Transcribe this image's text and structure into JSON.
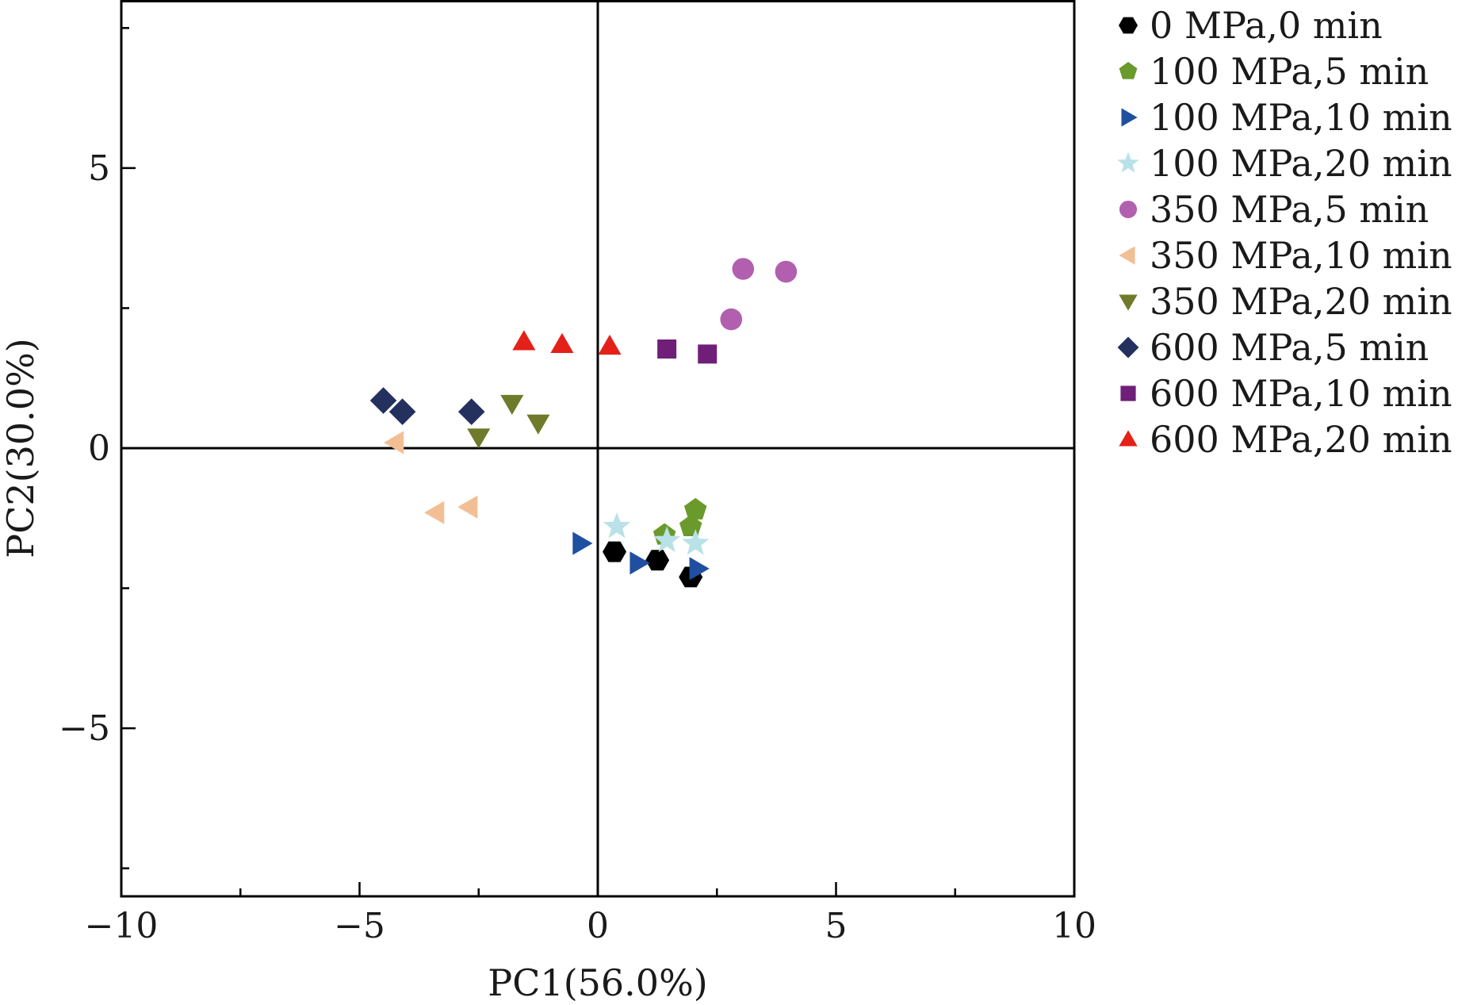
{
  "chart_data": {
    "type": "scatter",
    "xlabel": "PC1(56.0%)",
    "ylabel": "PC2(30.0%)",
    "xlim": [
      -10,
      10
    ],
    "ylim": [
      -8,
      8
    ],
    "xticks": [
      -10,
      -5,
      0,
      5,
      10
    ],
    "xtick_labels": [
      "−10",
      "−5",
      "0",
      "5",
      "10"
    ],
    "yticks": [
      5,
      0,
      -5
    ],
    "ytick_labels": [
      "5",
      "0",
      "−5"
    ],
    "zero_lines": true,
    "grid": false,
    "legend_position": "right, outside plot",
    "series": [
      {
        "name": "0 MPa,0 min",
        "marker": "hexagon",
        "color": "#000000",
        "points": [
          {
            "x": 0.35,
            "y": -1.85
          },
          {
            "x": 1.25,
            "y": -2.0
          },
          {
            "x": 1.95,
            "y": -2.3
          }
        ]
      },
      {
        "name": "100 MPa,5 min",
        "marker": "pentagon",
        "color": "#6a9a2c",
        "points": [
          {
            "x": 2.05,
            "y": -1.1
          },
          {
            "x": 1.95,
            "y": -1.4
          },
          {
            "x": 1.4,
            "y": -1.55
          }
        ]
      },
      {
        "name": "100 MPa,10 min",
        "marker": "triangle-right",
        "color": "#1f4fa0",
        "points": [
          {
            "x": -0.35,
            "y": -1.7
          },
          {
            "x": 0.85,
            "y": -2.05
          },
          {
            "x": 2.1,
            "y": -2.15
          }
        ]
      },
      {
        "name": "100 MPa,20 min",
        "marker": "star",
        "color": "#b9e2e8",
        "points": [
          {
            "x": 0.4,
            "y": -1.4
          },
          {
            "x": 1.45,
            "y": -1.65
          },
          {
            "x": 2.05,
            "y": -1.7
          }
        ]
      },
      {
        "name": "350 MPa,5 min",
        "marker": "circle",
        "color": "#b15fae",
        "points": [
          {
            "x": 3.05,
            "y": 3.2
          },
          {
            "x": 3.95,
            "y": 3.15
          },
          {
            "x": 2.8,
            "y": 2.3
          }
        ]
      },
      {
        "name": "350 MPa,10 min",
        "marker": "triangle-left",
        "color": "#f2bf94",
        "points": [
          {
            "x": -4.25,
            "y": 0.1
          },
          {
            "x": -3.4,
            "y": -1.15
          },
          {
            "x": -2.7,
            "y": -1.05
          }
        ]
      },
      {
        "name": "350 MPa,20 min",
        "marker": "triangle-down",
        "color": "#6f7a2a",
        "points": [
          {
            "x": -1.8,
            "y": 0.8
          },
          {
            "x": -1.25,
            "y": 0.45
          },
          {
            "x": -2.5,
            "y": 0.2
          }
        ]
      },
      {
        "name": "600 MPa,5 min",
        "marker": "diamond",
        "color": "#24305e",
        "points": [
          {
            "x": -4.5,
            "y": 0.85
          },
          {
            "x": -4.1,
            "y": 0.65
          },
          {
            "x": -2.65,
            "y": 0.65
          }
        ]
      },
      {
        "name": "600 MPa,10 min",
        "marker": "square",
        "color": "#6f1f78",
        "points": [
          {
            "x": 1.45,
            "y": 1.77
          },
          {
            "x": 2.3,
            "y": 1.68
          }
        ]
      },
      {
        "name": "600 MPa,20 min",
        "marker": "triangle-up",
        "color": "#e32119",
        "points": [
          {
            "x": -1.55,
            "y": 1.9
          },
          {
            "x": -0.75,
            "y": 1.85
          },
          {
            "x": 0.25,
            "y": 1.82
          }
        ]
      }
    ]
  }
}
